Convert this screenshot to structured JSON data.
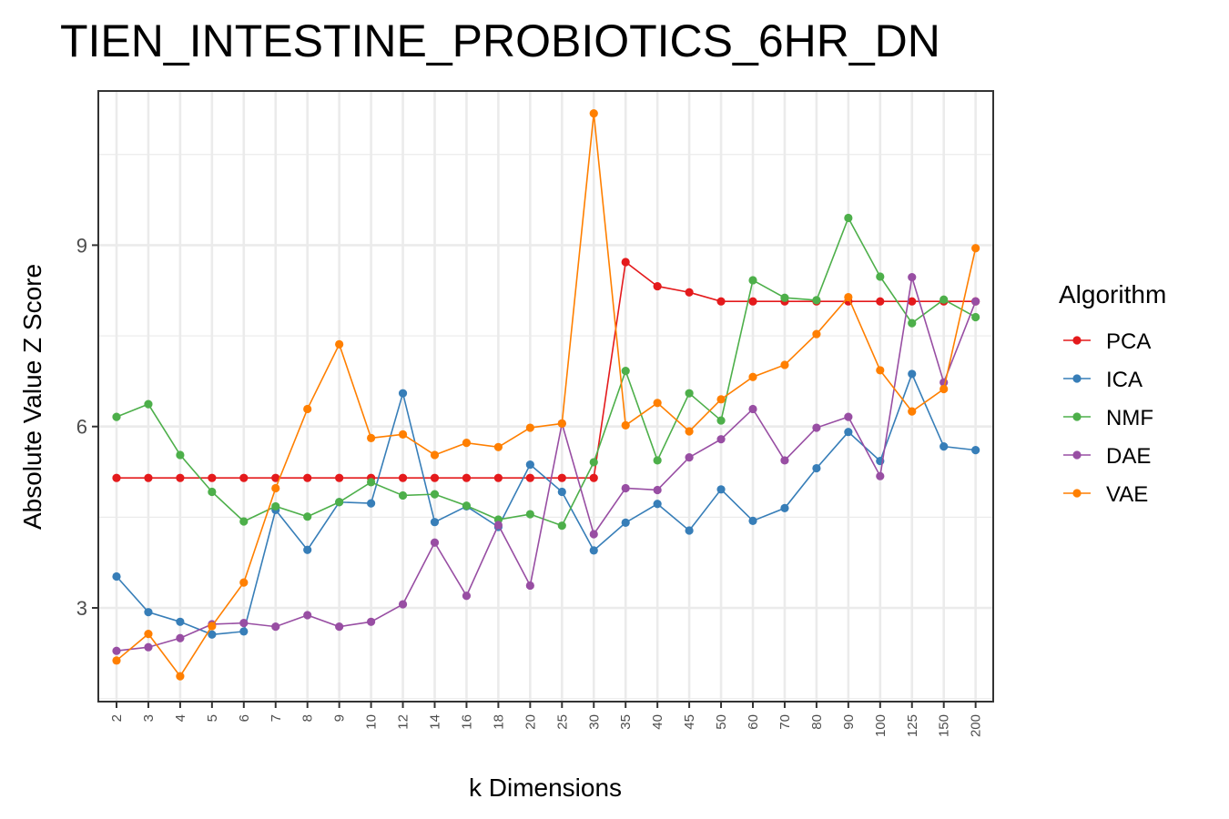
{
  "chart_data": {
    "type": "line",
    "title": "TIEN_INTESTINE_PROBIOTICS_6HR_DN",
    "xlabel": "k Dimensions",
    "ylabel": "Absolute Value Z Score",
    "categories": [
      "2",
      "3",
      "4",
      "5",
      "6",
      "7",
      "8",
      "9",
      "10",
      "12",
      "14",
      "16",
      "18",
      "20",
      "25",
      "30",
      "35",
      "40",
      "45",
      "50",
      "60",
      "70",
      "80",
      "90",
      "100",
      "125",
      "150",
      "200"
    ],
    "yticks": [
      3,
      6,
      9
    ],
    "ylim": [
      1.45,
      11.55
    ],
    "grid": true,
    "legend": {
      "title": "Algorithm",
      "position": "right"
    },
    "series": [
      {
        "name": "PCA",
        "color": "#E41A1C",
        "values": [
          5.15,
          5.15,
          5.15,
          5.15,
          5.15,
          5.15,
          5.15,
          5.15,
          5.15,
          5.15,
          5.15,
          5.15,
          5.15,
          5.15,
          5.15,
          5.15,
          8.72,
          8.32,
          8.22,
          8.07,
          8.07,
          8.07,
          8.07,
          8.07,
          8.07,
          8.07,
          8.07,
          8.07
        ]
      },
      {
        "name": "ICA",
        "color": "#377EB8",
        "values": [
          3.52,
          2.93,
          2.77,
          2.56,
          2.61,
          4.62,
          3.96,
          4.75,
          4.73,
          6.55,
          4.42,
          4.68,
          4.34,
          5.37,
          4.92,
          3.95,
          4.41,
          4.72,
          4.28,
          4.96,
          4.44,
          4.65,
          5.31,
          5.91,
          5.43,
          6.87,
          5.67,
          5.61
        ]
      },
      {
        "name": "NMF",
        "color": "#4DAF4A",
        "values": [
          6.16,
          6.37,
          5.53,
          4.92,
          4.43,
          4.68,
          4.51,
          4.75,
          5.08,
          4.86,
          4.88,
          4.69,
          4.46,
          4.55,
          4.36,
          5.41,
          6.92,
          5.44,
          6.55,
          6.1,
          8.42,
          8.13,
          8.09,
          9.45,
          8.48,
          7.71,
          8.1,
          7.81
        ]
      },
      {
        "name": "DAE",
        "color": "#984EA3",
        "values": [
          2.29,
          2.35,
          2.5,
          2.73,
          2.75,
          2.69,
          2.88,
          2.69,
          2.77,
          3.06,
          4.08,
          3.2,
          4.37,
          3.37,
          6.05,
          4.22,
          4.98,
          4.95,
          5.49,
          5.79,
          6.29,
          5.44,
          5.98,
          6.16,
          5.18,
          8.47,
          6.73,
          8.07
        ]
      },
      {
        "name": "VAE",
        "color": "#FF7F00",
        "values": [
          2.13,
          2.57,
          1.87,
          2.7,
          3.42,
          4.98,
          6.29,
          7.36,
          5.81,
          5.87,
          5.53,
          5.73,
          5.66,
          5.98,
          6.05,
          11.18,
          6.02,
          6.39,
          5.92,
          6.45,
          6.82,
          7.02,
          7.53,
          8.14,
          6.93,
          6.25,
          6.62,
          8.95
        ]
      }
    ]
  }
}
